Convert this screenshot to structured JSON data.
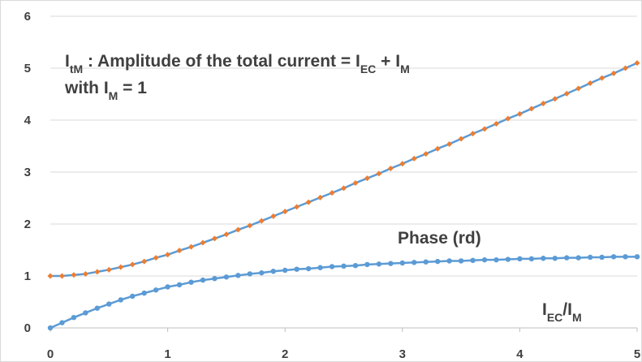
{
  "chart_data": {
    "type": "line",
    "x": [
      0,
      0.1,
      0.2,
      0.3,
      0.4,
      0.5,
      0.6,
      0.7,
      0.8,
      0.9,
      1,
      1.1,
      1.2,
      1.3,
      1.4,
      1.5,
      1.6,
      1.7,
      1.8,
      1.9,
      2,
      2.1,
      2.2,
      2.3,
      2.4,
      2.5,
      2.6,
      2.7,
      2.8,
      2.9,
      3,
      3.1,
      3.2,
      3.3,
      3.4,
      3.5,
      3.6,
      3.7,
      3.8,
      3.9,
      4,
      4.1,
      4.2,
      4.3,
      4.4,
      4.5,
      4.6,
      4.7,
      4.8,
      4.9,
      5
    ],
    "series": [
      {
        "color": "#5b9bd5",
        "marker_color": "#ed7d31",
        "marker": "diamond",
        "values": [
          1.0,
          1.0,
          1.02,
          1.04,
          1.08,
          1.12,
          1.17,
          1.22,
          1.28,
          1.35,
          1.41,
          1.49,
          1.56,
          1.64,
          1.72,
          1.8,
          1.89,
          1.97,
          2.06,
          2.15,
          2.24,
          2.33,
          2.42,
          2.51,
          2.6,
          2.69,
          2.79,
          2.88,
          2.97,
          3.07,
          3.16,
          3.26,
          3.35,
          3.45,
          3.54,
          3.64,
          3.74,
          3.83,
          3.93,
          4.03,
          4.12,
          4.22,
          4.32,
          4.41,
          4.51,
          4.61,
          4.71,
          4.81,
          4.9,
          5.0,
          5.1
        ]
      },
      {
        "name": "Phase (rd)",
        "color": "#5b9bd5",
        "marker_color": "#5b9bd5",
        "marker": "circle",
        "values": [
          0,
          0.1,
          0.2,
          0.29,
          0.38,
          0.46,
          0.54,
          0.61,
          0.67,
          0.73,
          0.79,
          0.83,
          0.88,
          0.92,
          0.95,
          0.98,
          1.01,
          1.04,
          1.06,
          1.09,
          1.11,
          1.13,
          1.14,
          1.16,
          1.18,
          1.19,
          1.2,
          1.22,
          1.23,
          1.24,
          1.25,
          1.26,
          1.27,
          1.28,
          1.29,
          1.29,
          1.3,
          1.31,
          1.31,
          1.32,
          1.33,
          1.33,
          1.34,
          1.34,
          1.35,
          1.35,
          1.36,
          1.36,
          1.37,
          1.37,
          1.37
        ]
      }
    ],
    "annotations": [
      {
        "color": "#c55a11",
        "runs": [
          {
            "text": "I"
          },
          {
            "sub": "tM"
          },
          {
            "text": " : Amplitude of the total current = I"
          },
          {
            "sub": "EC"
          },
          {
            "text": " + I"
          },
          {
            "sub": "M"
          }
        ]
      },
      {
        "color": "#c55a11",
        "runs": [
          {
            "text": "with I"
          },
          {
            "sub": "M"
          },
          {
            "text": " = 1"
          }
        ]
      }
    ],
    "xlabel_runs": [
      {
        "text": "I"
      },
      {
        "sub": "EC"
      },
      {
        "text": "/I"
      },
      {
        "sub": "M"
      }
    ],
    "xlim": [
      0,
      5
    ],
    "xticks": [
      0,
      1,
      2,
      3,
      4,
      5
    ],
    "ylim": [
      0,
      6
    ],
    "yticks": [
      0,
      1,
      2,
      3,
      4,
      5,
      6
    ],
    "grid": true
  }
}
